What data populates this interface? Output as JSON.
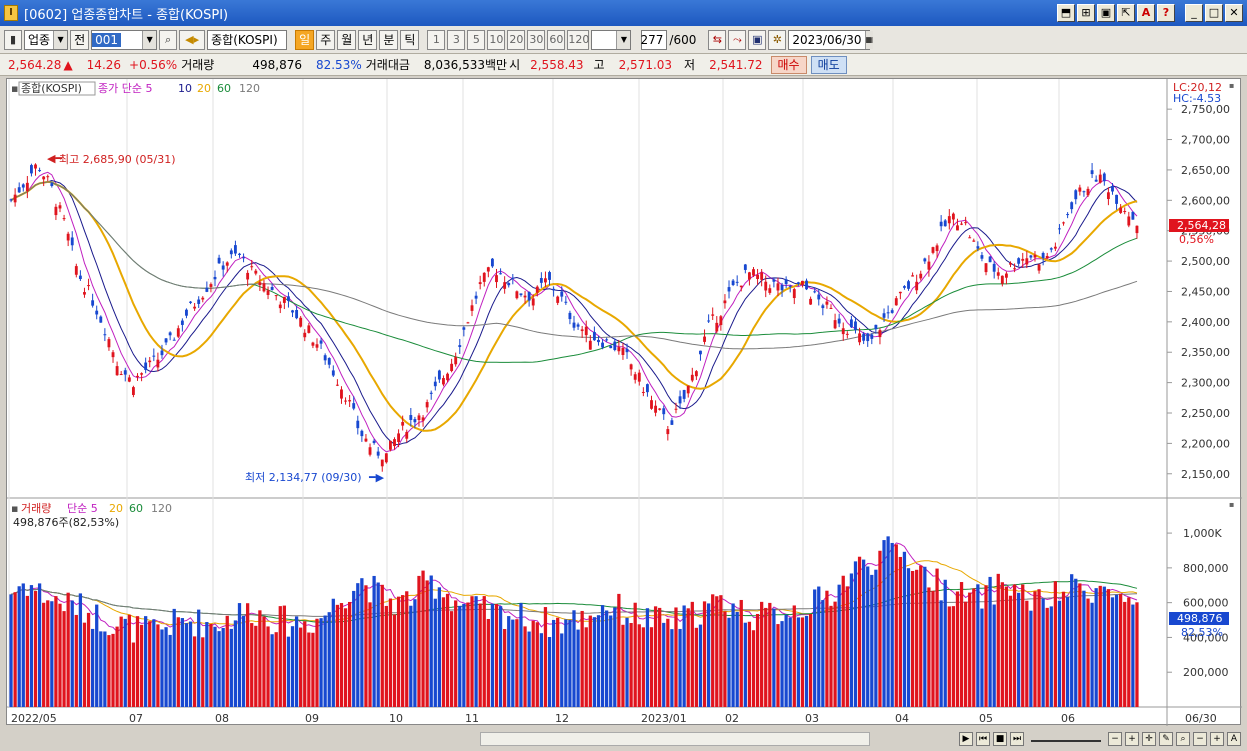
{
  "window": {
    "title": "[0602] 업종종합차트 - 종합(KOSPI)",
    "buttons": [
      "⬒",
      "⊞",
      "▣",
      "⇱",
      "A",
      "?"
    ],
    "controls": [
      "_",
      "□",
      "✕"
    ]
  },
  "toolbar": {
    "market": "업종",
    "scope": "전",
    "code": "001",
    "name": "종합(KOSPI)",
    "periods": [
      "일",
      "주",
      "월",
      "년",
      "분",
      "틱"
    ],
    "active_period": "일",
    "intervals": [
      "1",
      "3",
      "5",
      "10",
      "20",
      "30",
      "60",
      "120"
    ],
    "count": "277",
    "count_total": "/600",
    "date": "2023/06/30"
  },
  "quote": {
    "price": "2,564.28",
    "arrow": "▲",
    "change": "14.26",
    "change_pct": "+0.56%",
    "volume_label": "거래량",
    "volume": "498,876",
    "volume_pct": "82.53%",
    "amount_label": "거래대금",
    "amount": "8,036,533백만",
    "open_label": "시",
    "open": "2,558.43",
    "high_label": "고",
    "high": "2,571.03",
    "low_label": "저",
    "low": "2,541.72",
    "buy": "매수",
    "sell": "매도"
  },
  "colors": {
    "up": "#e0141e",
    "down": "#1848d0",
    "ma5": "#c020c0",
    "ma10": "#1a1a8c",
    "ma20": "#e8a800",
    "ma60": "#1a8c3a",
    "ma120": "#7a7a7a"
  },
  "legend_price": {
    "name": "종합(KOSPI)",
    "ma": "종가 단순 5",
    "p10": "10",
    "p20": "20",
    "p60": "60",
    "p120": "120"
  },
  "legend_volume": {
    "name": "거래량",
    "ma": "단순 5",
    "p20": "20",
    "p60": "60",
    "p120": "120",
    "current": "498,876주(82,53%)"
  },
  "price_axis": {
    "lc": "LC:20,12",
    "hc": "HC:-4.53",
    "ticks": [
      "2,750,00",
      "2,700,00",
      "2,650,00",
      "2,600,00",
      "2,550,00",
      "2,500,00",
      "2,450,00",
      "2,400,00",
      "2,350,00",
      "2,300,00",
      "2,250,00",
      "2,200,00",
      "2,150,00"
    ],
    "current": "2,564,28",
    "current_pct": "0,56%"
  },
  "volume_axis": {
    "ticks": [
      "1,000K",
      "800,000",
      "600,000",
      "400,000",
      "200,000"
    ],
    "current": "498,876",
    "current_pct": "82,53%"
  },
  "annotations": {
    "high": "최고 2,685,90 (05/31)",
    "low": "최저 2,134,77 (09/30)"
  },
  "x_axis": {
    "labels": [
      "2022/05",
      "07",
      "08",
      "09",
      "10",
      "11",
      "12",
      "2023/01",
      "02",
      "03",
      "04",
      "05",
      "06"
    ],
    "last": "06/30"
  },
  "chart_data": {
    "type": "candlestick",
    "ylim": [
      2120,
      2770
    ],
    "close_path": [
      2600,
      2630,
      2660,
      2620,
      2560,
      2480,
      2440,
      2390,
      2330,
      2300,
      2320,
      2340,
      2370,
      2410,
      2440,
      2470,
      2500,
      2510,
      2480,
      2460,
      2440,
      2420,
      2390,
      2360,
      2320,
      2280,
      2220,
      2190,
      2180,
      2220,
      2240,
      2260,
      2300,
      2340,
      2400,
      2460,
      2490,
      2470,
      2450,
      2440,
      2470,
      2440,
      2400,
      2380,
      2370,
      2360,
      2340,
      2300,
      2260,
      2230,
      2260,
      2320,
      2390,
      2420,
      2460,
      2480,
      2470,
      2460,
      2450,
      2460,
      2440,
      2420,
      2400,
      2380,
      2360,
      2400,
      2430,
      2460,
      2490,
      2530,
      2570,
      2570,
      2520,
      2490,
      2480,
      2500,
      2510,
      2500,
      2530,
      2590,
      2620,
      2640,
      2620,
      2590,
      2564
    ],
    "volume_path": [
      640,
      700,
      650,
      600,
      580,
      560,
      520,
      480,
      460,
      440,
      420,
      430,
      460,
      480,
      470,
      460,
      480,
      520,
      540,
      500,
      480,
      470,
      470,
      490,
      560,
      640,
      720,
      660,
      600,
      580,
      620,
      700,
      680,
      600,
      560,
      540,
      520,
      520,
      500,
      490,
      470,
      470,
      480,
      500,
      560,
      560,
      520,
      500,
      480,
      470,
      480,
      520,
      560,
      580,
      560,
      520,
      500,
      520,
      540,
      560,
      580,
      620,
      700,
      780,
      820,
      860,
      900,
      840,
      760,
      700,
      650,
      620,
      600,
      640,
      700,
      660,
      600,
      580,
      620,
      660,
      680,
      660,
      640,
      600,
      499
    ],
    "volume_ylim": [
      0,
      1150000
    ]
  }
}
